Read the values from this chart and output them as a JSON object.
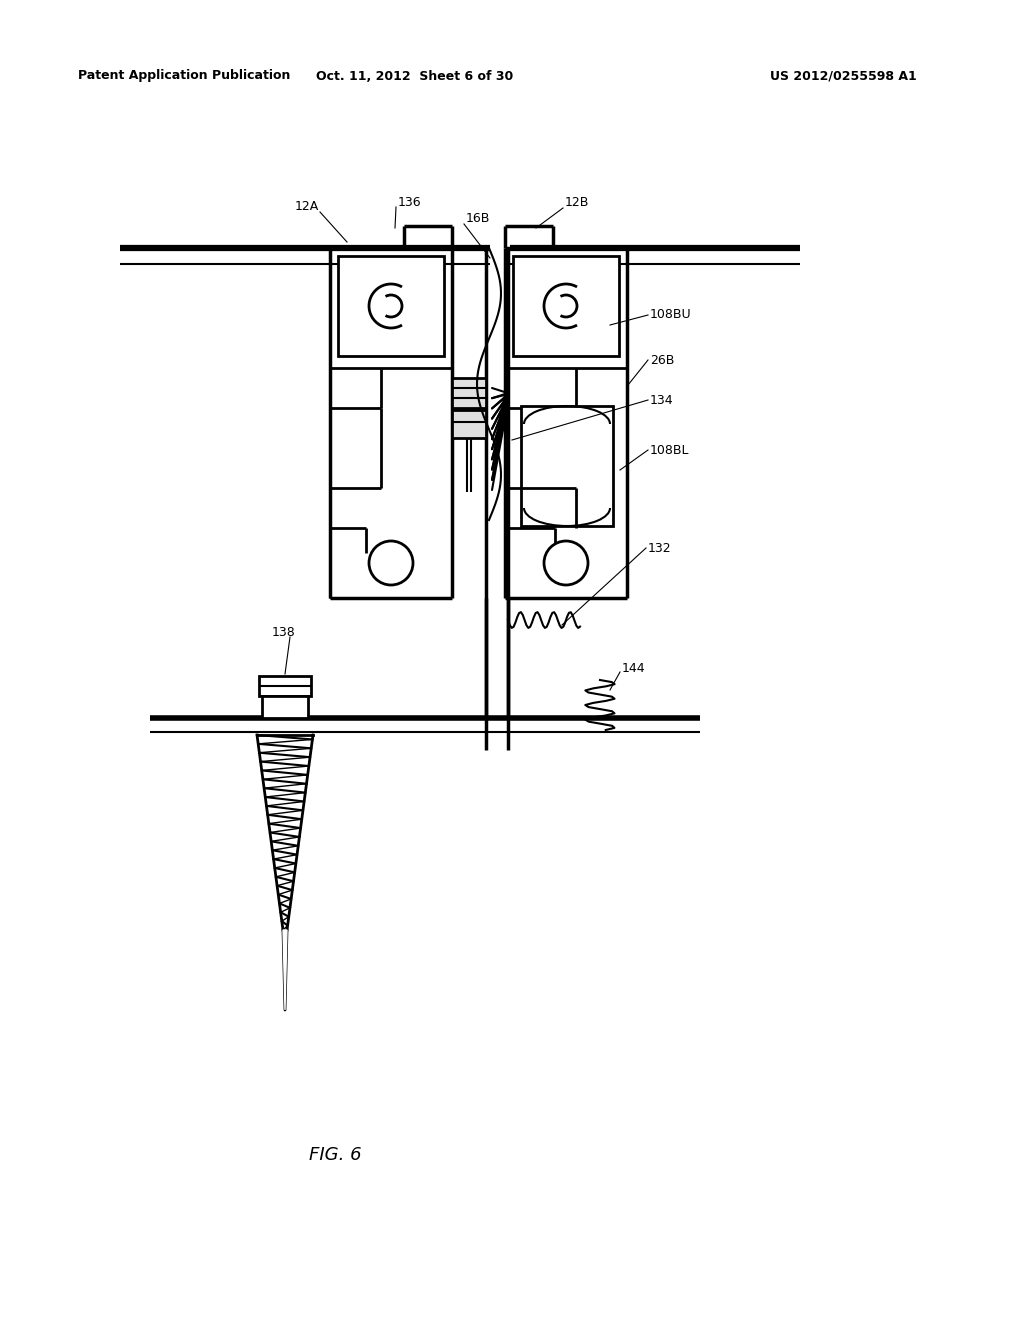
{
  "bg_color": "#ffffff",
  "line_color": "#000000",
  "header_left": "Patent Application Publication",
  "header_mid": "Oct. 11, 2012  Sheet 6 of 30",
  "header_right": "US 2012/0255598 A1",
  "fig_label": "FIG. 6",
  "label_fontsize": 9,
  "header_fontsize": 9,
  "fig_label_fontsize": 13
}
